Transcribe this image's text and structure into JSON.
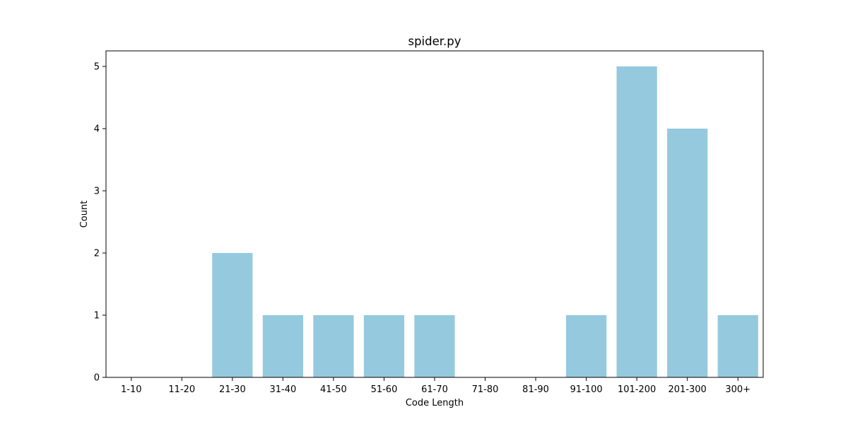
{
  "chart_data": {
    "type": "bar",
    "title": "spider.py",
    "xlabel": "Code Length",
    "ylabel": "Count",
    "categories": [
      "1-10",
      "11-20",
      "21-30",
      "31-40",
      "41-50",
      "51-60",
      "61-70",
      "71-80",
      "81-90",
      "91-100",
      "101-200",
      "201-300",
      "300+"
    ],
    "values": [
      0,
      0,
      2,
      1,
      1,
      1,
      1,
      0,
      0,
      1,
      5,
      4,
      1
    ],
    "ylim": [
      0,
      5.25
    ],
    "yticks": [
      "0",
      "1",
      "2",
      "3",
      "4",
      "5"
    ],
    "bar_color": "#95c9de",
    "grid": false,
    "legend": "none"
  }
}
